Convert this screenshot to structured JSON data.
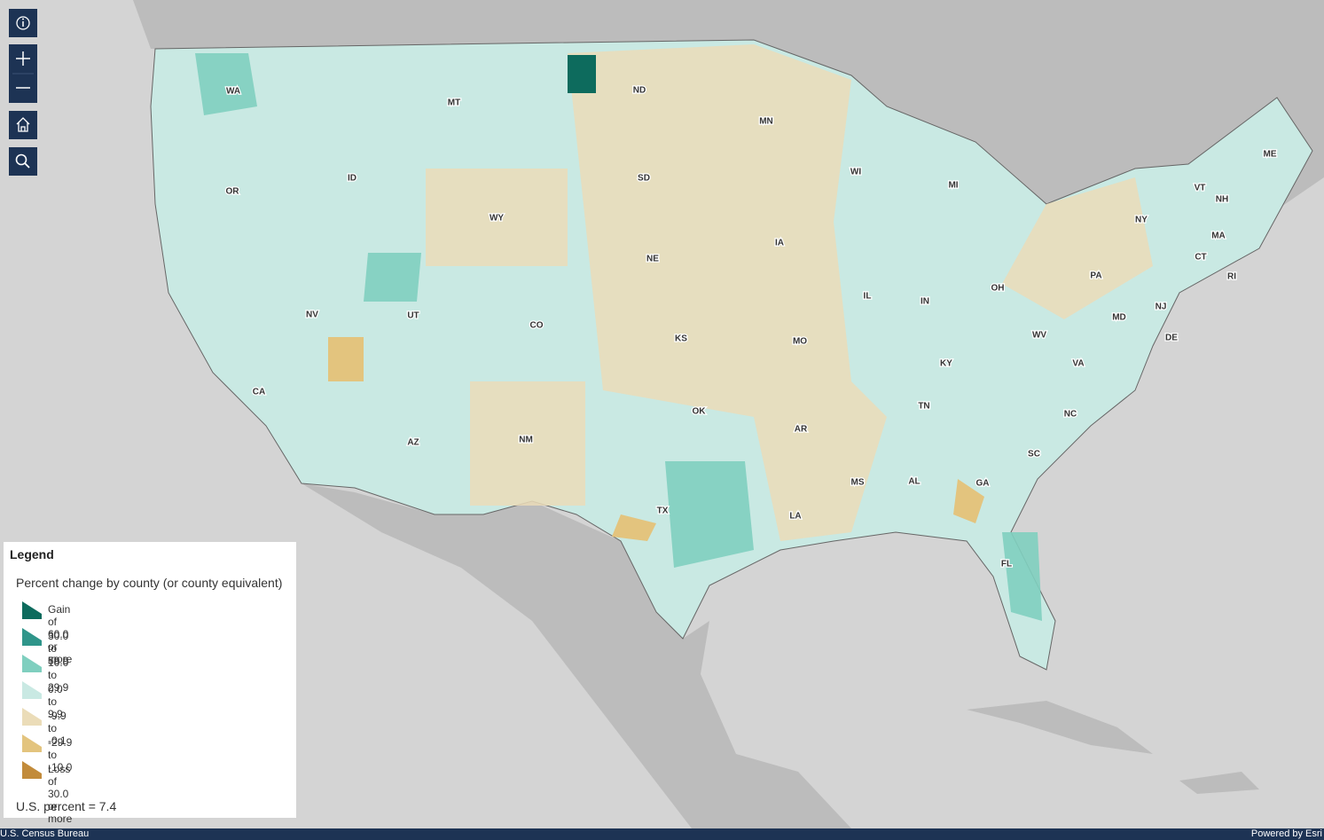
{
  "legend": {
    "heading": "Legend",
    "subtitle": "Percent change by county (or county equivalent)",
    "items": [
      {
        "label": "Gain of 60.0 or more",
        "color": "#0d6b5d"
      },
      {
        "label": "30.0 to 59.9",
        "color": "#2f958a"
      },
      {
        "label": "10.0 to 29.9",
        "color": "#7fcfbf"
      },
      {
        "label": "0.0 to 9.9",
        "color": "#c9e9e3"
      },
      {
        "label": "-9.9 to -0.1",
        "color": "#ebdcb8"
      },
      {
        "label": "-29.9 to -10.0",
        "color": "#e3c47e"
      },
      {
        "label": "Loss of 30.0 or more",
        "color": "#c28b3b"
      }
    ],
    "note": "U.S. percent = 7.4"
  },
  "states": [
    "WA",
    "MT",
    "ND",
    "MN",
    "OR",
    "ID",
    "SD",
    "WI",
    "MI",
    "ME",
    "WY",
    "NY",
    "VT",
    "NH",
    "MA",
    "IA",
    "NE",
    "CT",
    "RI",
    "PA",
    "NV",
    "UT",
    "CO",
    "IL",
    "IN",
    "OH",
    "NJ",
    "MD",
    "DE",
    "KS",
    "MO",
    "WV",
    "KY",
    "VA",
    "CA",
    "TN",
    "OK",
    "NC",
    "AR",
    "AZ",
    "NM",
    "SC",
    "GA",
    "AL",
    "MS",
    "TX",
    "LA",
    "FL"
  ],
  "footer": {
    "left": "U.S. Census Bureau",
    "right": "Powered by Esri"
  }
}
